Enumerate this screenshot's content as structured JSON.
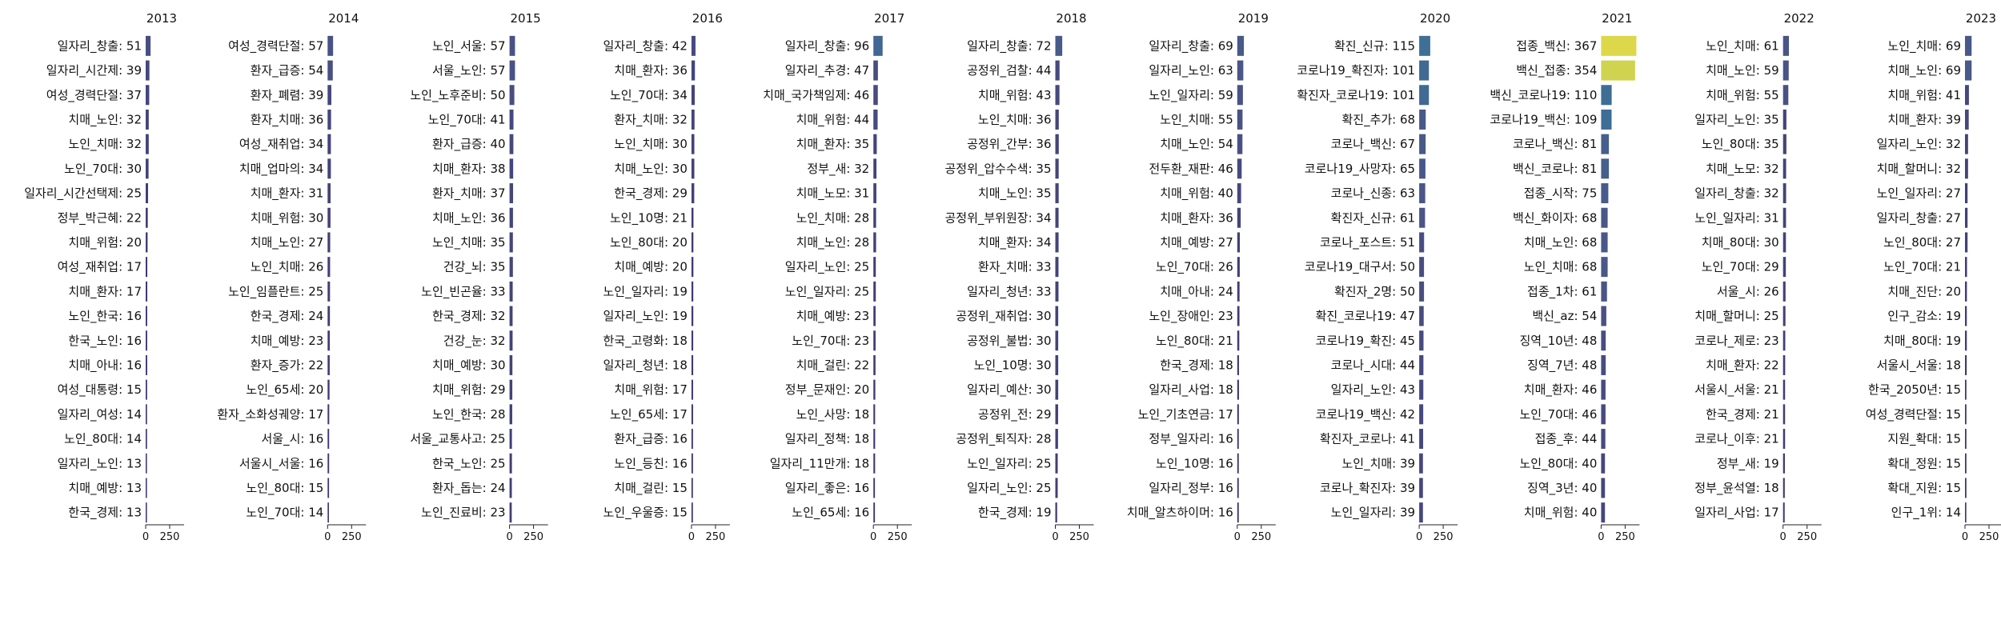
{
  "chart_data": [
    {
      "type": "bar",
      "orientation": "horizontal",
      "title": "2013",
      "xlim": [
        0,
        400
      ],
      "xticks": [
        0,
        250
      ],
      "categories": [
        "일자리_창출",
        "일자리_시간제",
        "여성_경력단절",
        "치매_노인",
        "노인_치매",
        "노인_70대",
        "일자리_시간선택제",
        "정부_박근혜",
        "치매_위험",
        "여성_재취업",
        "치매_환자",
        "노인_한국",
        "한국_노인",
        "치매_아내",
        "여성_대통령",
        "일자리_여성",
        "노인_80대",
        "일자리_노인",
        "치매_예방",
        "한국_경제"
      ],
      "values": [
        51,
        39,
        37,
        32,
        32,
        30,
        25,
        22,
        20,
        17,
        17,
        16,
        16,
        16,
        15,
        14,
        14,
        13,
        13,
        13
      ]
    },
    {
      "type": "bar",
      "orientation": "horizontal",
      "title": "2014",
      "xlim": [
        0,
        400
      ],
      "xticks": [
        0,
        250
      ],
      "categories": [
        "여성_경력단절",
        "환자_급증",
        "환자_폐렴",
        "환자_치매",
        "여성_재취업",
        "치매_업마의",
        "치매_환자",
        "치매_위험",
        "치매_노인",
        "노인_치매",
        "노인_임플란트",
        "한국_경제",
        "치매_예방",
        "환자_증가",
        "노인_65세",
        "환자_소화성궤양",
        "서울_시",
        "서울시_서울",
        "노인_80대",
        "노인_70대"
      ],
      "values": [
        57,
        54,
        39,
        36,
        34,
        34,
        31,
        30,
        27,
        26,
        25,
        24,
        23,
        22,
        20,
        17,
        16,
        16,
        15,
        14
      ]
    },
    {
      "type": "bar",
      "orientation": "horizontal",
      "title": "2015",
      "xlim": [
        0,
        400
      ],
      "xticks": [
        0,
        250
      ],
      "categories": [
        "노인_서울",
        "서울_노인",
        "노인_노후준비",
        "노인_70대",
        "환자_급증",
        "치매_환자",
        "환자_치매",
        "치매_노인",
        "노인_치매",
        "건강_뇌",
        "노인_빈곤율",
        "한국_경제",
        "건강_눈",
        "치매_예방",
        "치매_위험",
        "노인_한국",
        "서울_교통사고",
        "한국_노인",
        "환자_돕는",
        "노인_진료비"
      ],
      "values": [
        57,
        57,
        50,
        41,
        40,
        38,
        37,
        36,
        35,
        35,
        33,
        32,
        32,
        30,
        29,
        28,
        25,
        25,
        24,
        23
      ]
    },
    {
      "type": "bar",
      "orientation": "horizontal",
      "title": "2016",
      "xlim": [
        0,
        400
      ],
      "xticks": [
        0,
        250
      ],
      "categories": [
        "일자리_창출",
        "치매_환자",
        "노인_70대",
        "환자_치매",
        "노인_치매",
        "치매_노인",
        "한국_경제",
        "노인_10명",
        "노인_80대",
        "치매_예방",
        "노인_일자리",
        "일자리_노인",
        "한국_고령화",
        "일자리_청년",
        "치매_위험",
        "노인_65세",
        "환자_급증",
        "노인_등친",
        "치매_걸린",
        "노인_우울증"
      ],
      "values": [
        42,
        36,
        34,
        32,
        30,
        30,
        29,
        21,
        20,
        20,
        19,
        19,
        18,
        18,
        17,
        17,
        16,
        16,
        15,
        15
      ]
    },
    {
      "type": "bar",
      "orientation": "horizontal",
      "title": "2017",
      "xlim": [
        0,
        400
      ],
      "xticks": [
        0,
        250
      ],
      "categories": [
        "일자리_창출",
        "일자리_추경",
        "치매_국가책임제",
        "치매_위험",
        "치매_환자",
        "정부_새",
        "치매_노모",
        "노인_치매",
        "치매_노인",
        "일자리_노인",
        "노인_일자리",
        "치매_예방",
        "노인_70대",
        "치매_걸린",
        "정부_문재인",
        "노인_사망",
        "일자리_정책",
        "일자리_11만개",
        "일자리_좋은",
        "노인_65세"
      ],
      "values": [
        96,
        47,
        46,
        44,
        35,
        32,
        31,
        28,
        28,
        25,
        25,
        23,
        23,
        22,
        20,
        18,
        18,
        18,
        16,
        16
      ]
    },
    {
      "type": "bar",
      "orientation": "horizontal",
      "title": "2018",
      "xlim": [
        0,
        400
      ],
      "xticks": [
        0,
        250
      ],
      "categories": [
        "일자리_창출",
        "공정위_검찰",
        "치매_위험",
        "노인_치매",
        "공정위_간부",
        "공정위_압수수색",
        "치매_노인",
        "공정위_부위원장",
        "치매_환자",
        "환자_치매",
        "일자리_청년",
        "공정위_재취업",
        "공정위_불법",
        "노인_10명",
        "일자리_예산",
        "공정위_전",
        "공정위_퇴직자",
        "노인_일자리",
        "일자리_노인",
        "한국_경제"
      ],
      "values": [
        72,
        44,
        43,
        36,
        36,
        35,
        35,
        34,
        34,
        33,
        33,
        30,
        30,
        30,
        30,
        29,
        28,
        25,
        25,
        19
      ]
    },
    {
      "type": "bar",
      "orientation": "horizontal",
      "title": "2019",
      "xlim": [
        0,
        400
      ],
      "xticks": [
        0,
        250
      ],
      "categories": [
        "일자리_창출",
        "일자리_노인",
        "노인_일자리",
        "노인_치매",
        "치매_노인",
        "전두환_재판",
        "치매_위험",
        "치매_환자",
        "치매_예방",
        "노인_70대",
        "치매_아내",
        "노인_장애인",
        "노인_80대",
        "한국_경제",
        "일자리_사업",
        "노인_기초연금",
        "정부_일자리",
        "노인_10명",
        "일자리_정부",
        "치매_알츠하이머"
      ],
      "values": [
        69,
        63,
        59,
        55,
        54,
        46,
        40,
        36,
        27,
        26,
        24,
        23,
        21,
        18,
        18,
        17,
        16,
        16,
        16,
        16
      ]
    },
    {
      "type": "bar",
      "orientation": "horizontal",
      "title": "2020",
      "xlim": [
        0,
        400
      ],
      "xticks": [
        0,
        250
      ],
      "categories": [
        "확진_신규",
        "코로나19_확진자",
        "확진자_코로나19",
        "확진_추가",
        "코로나_백신",
        "코로나19_사망자",
        "코로나_신종",
        "확진자_신규",
        "코로나_포스트",
        "코로나19_대구서",
        "확진자_2명",
        "확진_코로나19",
        "코로나19_확진",
        "코로나_시대",
        "일자리_노인",
        "코로나19_백신",
        "확진자_코로나",
        "노인_치매",
        "코로나_확진자",
        "노인_일자리"
      ],
      "values": [
        115,
        101,
        101,
        68,
        67,
        65,
        63,
        61,
        51,
        50,
        50,
        47,
        45,
        44,
        43,
        42,
        41,
        39,
        39,
        39
      ]
    },
    {
      "type": "bar",
      "orientation": "horizontal",
      "title": "2021",
      "xlim": [
        0,
        400
      ],
      "xticks": [
        0,
        250
      ],
      "categories": [
        "접종_백신",
        "백신_접종",
        "백신_코로나19",
        "코로나19_백신",
        "코로나_백신",
        "백신_코로나",
        "접종_시작",
        "백신_화이자",
        "치매_노인",
        "노인_치매",
        "접종_1차",
        "백신_az",
        "징역_10년",
        "징역_7년",
        "치매_환자",
        "노인_70대",
        "접종_후",
        "노인_80대",
        "징역_3년",
        "치매_위험"
      ],
      "values": [
        367,
        354,
        110,
        109,
        81,
        81,
        75,
        68,
        68,
        68,
        61,
        54,
        48,
        48,
        46,
        46,
        44,
        40,
        40,
        40
      ]
    },
    {
      "type": "bar",
      "orientation": "horizontal",
      "title": "2022",
      "xlim": [
        0,
        400
      ],
      "xticks": [
        0,
        250
      ],
      "categories": [
        "노인_치매",
        "치매_노인",
        "치매_위험",
        "일자리_노인",
        "노인_80대",
        "치매_노모",
        "일자리_창출",
        "노인_일자리",
        "치매_80대",
        "노인_70대",
        "서울_시",
        "치매_할머니",
        "코로나_제로",
        "치매_환자",
        "서울시_서울",
        "한국_경제",
        "코로나_이후",
        "정부_새",
        "정부_윤석열",
        "일자리_사업"
      ],
      "values": [
        61,
        59,
        55,
        35,
        35,
        32,
        32,
        31,
        30,
        29,
        26,
        25,
        23,
        22,
        21,
        21,
        21,
        19,
        18,
        17
      ]
    },
    {
      "type": "bar",
      "orientation": "horizontal",
      "title": "2023",
      "xlim": [
        0,
        400
      ],
      "xticks": [
        0,
        250
      ],
      "categories": [
        "노인_치매",
        "치매_노인",
        "치매_위험",
        "치매_환자",
        "일자리_노인",
        "치매_할머니",
        "노인_일자리",
        "일자리_창출",
        "노인_80대",
        "노인_70대",
        "치매_진단",
        "인구_감소",
        "치매_80대",
        "서울시_서울",
        "한국_2050년",
        "여성_경력단절",
        "지원_확대",
        "확대_정원",
        "확대_지원",
        "인구_1위"
      ],
      "values": [
        69,
        69,
        41,
        39,
        32,
        32,
        27,
        27,
        27,
        21,
        20,
        19,
        19,
        18,
        15,
        15,
        15,
        15,
        15,
        14
      ]
    }
  ],
  "colors": {
    "low": "#3b2f6b",
    "mid": "#3e6e96",
    "high": "#dcd84a",
    "text": "#111111",
    "axis": "#222222"
  }
}
